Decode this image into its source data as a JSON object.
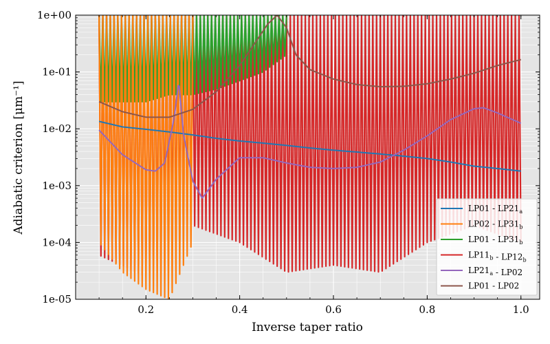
{
  "chart_data": {
    "type": "line",
    "xlabel": "Inverse taper ratio",
    "ylabel": "Adiabatic criterion [μm⁻¹]",
    "xlim": [
      0.05,
      1.04
    ],
    "ylim": [
      1e-05,
      1.0
    ],
    "yscale": "log",
    "xticks": [
      0.2,
      0.4,
      0.6,
      0.8,
      1.0
    ],
    "xtick_labels": [
      "0.2",
      "0.4",
      "0.6",
      "0.8",
      "1.0"
    ],
    "yticks": [
      1e-05,
      0.0001,
      0.001,
      0.01,
      0.1,
      1.0
    ],
    "ytick_labels": [
      "1e-05",
      "1e-04",
      "1e-03",
      "1e-02",
      "1e-01",
      "1e+00"
    ],
    "grid": true,
    "background": "#e5e5e5",
    "legend_position": "lower-right",
    "series": [
      {
        "name": "LP01 - LP21a",
        "label_base": "LP01 - LP21",
        "label_sub": "a",
        "color": "#1f77b4",
        "style": "smooth",
        "x": [
          0.1,
          0.15,
          0.2,
          0.25,
          0.3,
          0.35,
          0.4,
          0.45,
          0.5,
          0.55,
          0.6,
          0.65,
          0.7,
          0.75,
          0.8,
          0.85,
          0.9,
          0.95,
          1.0
        ],
        "y": [
          0.0135,
          0.0108,
          0.0098,
          0.0088,
          0.0078,
          0.0068,
          0.0061,
          0.0056,
          0.0051,
          0.0046,
          0.0042,
          0.0039,
          0.0036,
          0.0033,
          0.003,
          0.0026,
          0.0022,
          0.002,
          0.0018
        ]
      },
      {
        "name": "LP02 - LP31b",
        "label_base": "LP02 - LP31",
        "label_sub": "b",
        "color": "#ff7f0e",
        "style": "oscillating",
        "x": [
          0.1,
          0.15,
          0.2,
          0.25,
          0.3
        ],
        "y_low": [
          0.0001,
          3e-05,
          1.5e-05,
          1e-05,
          0.0001
        ],
        "y_high": [
          1.0,
          1.0,
          1.0,
          1.0,
          1.0
        ]
      },
      {
        "name": "LP01 - LP31b",
        "label_base": "LP01 - LP31",
        "label_sub": "b",
        "color": "#2ca02c",
        "style": "oscillating",
        "x": [
          0.1,
          0.15,
          0.2,
          0.25,
          0.3,
          0.35,
          0.4,
          0.45,
          0.5
        ],
        "y_low": [
          0.03,
          0.03,
          0.03,
          0.04,
          0.04,
          0.05,
          0.07,
          0.1,
          0.2
        ],
        "y_high": [
          1.0,
          1.0,
          1.0,
          1.0,
          1.0,
          1.0,
          1.0,
          1.0,
          1.0
        ]
      },
      {
        "name": "LP11b - LP12b",
        "label_base": "LP11",
        "label_sub": "b",
        "label_mid": " - LP12",
        "label_sub2": "b",
        "color": "#d62728",
        "style": "oscillating",
        "x": [
          0.1,
          0.2,
          0.3,
          0.4,
          0.5,
          0.6,
          0.7,
          0.8,
          0.9,
          1.0
        ],
        "y_low": [
          6e-05,
          2.5e-05,
          0.0002,
          0.0001,
          3e-05,
          4e-05,
          3e-05,
          0.0001,
          0.0002,
          0.0001
        ],
        "y_high": [
          1.0,
          1.0,
          1.0,
          1.0,
          1.0,
          1.0,
          1.0,
          1.0,
          1.0,
          1.0
        ]
      },
      {
        "name": "LP21a - LP02",
        "label_base": "LP21",
        "label_sub": "a",
        "label_mid": " - LP02",
        "color": "#9467bd",
        "style": "smooth",
        "x": [
          0.1,
          0.15,
          0.2,
          0.22,
          0.24,
          0.26,
          0.27,
          0.28,
          0.3,
          0.32,
          0.35,
          0.4,
          0.45,
          0.5,
          0.55,
          0.6,
          0.65,
          0.7,
          0.75,
          0.8,
          0.85,
          0.9,
          0.92,
          0.95,
          1.0
        ],
        "y": [
          0.0095,
          0.0035,
          0.0019,
          0.0018,
          0.0025,
          0.015,
          0.07,
          0.008,
          0.0012,
          0.0006,
          0.0013,
          0.0031,
          0.0031,
          0.0025,
          0.0021,
          0.002,
          0.0021,
          0.0026,
          0.0042,
          0.0075,
          0.0145,
          0.0225,
          0.0235,
          0.019,
          0.0125
        ]
      },
      {
        "name": "LP01 - LP02",
        "label_base": "LP01 - LP02",
        "color": "#8c564b",
        "style": "smooth",
        "x": [
          0.1,
          0.15,
          0.2,
          0.25,
          0.3,
          0.35,
          0.4,
          0.43,
          0.46,
          0.48,
          0.5,
          0.52,
          0.55,
          0.6,
          0.65,
          0.7,
          0.75,
          0.8,
          0.85,
          0.9,
          0.95,
          1.0
        ],
        "y": [
          0.03,
          0.02,
          0.016,
          0.016,
          0.022,
          0.045,
          0.13,
          0.3,
          0.7,
          1.0,
          0.6,
          0.2,
          0.11,
          0.075,
          0.06,
          0.055,
          0.056,
          0.062,
          0.075,
          0.095,
          0.13,
          0.165
        ]
      }
    ]
  }
}
